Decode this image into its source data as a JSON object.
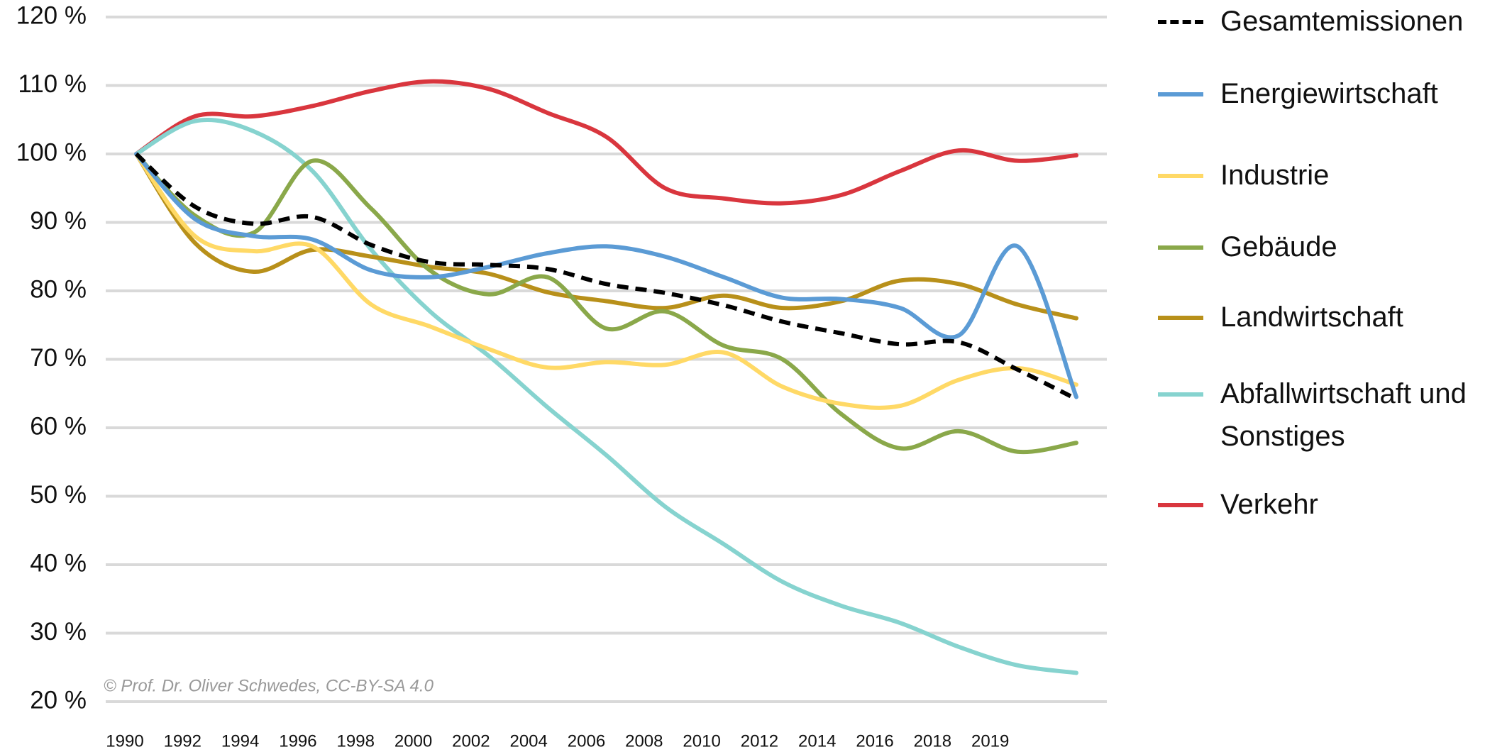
{
  "chart_data": {
    "type": "line",
    "categories": [
      "1990",
      "1992",
      "1994",
      "1996",
      "1998",
      "2000",
      "2002",
      "2004",
      "2006",
      "2008",
      "2010",
      "2012",
      "2014",
      "2016",
      "2018",
      "2019",
      null
    ],
    "series": [
      {
        "name": "Gesamtemissionen",
        "color": "#000000",
        "dashed": true,
        "values": [
          100,
          92.3,
          89.8,
          90.8,
          86.7,
          84.2,
          83.8,
          83.2,
          81,
          79.7,
          77.9,
          75.5,
          73.8,
          72.2,
          72.5,
          68.5,
          64.2
        ]
      },
      {
        "name": "Energiewirtschaft",
        "color": "#5b9bd5",
        "values": [
          100,
          90.5,
          88,
          87.5,
          83,
          82,
          83.5,
          85.5,
          86.5,
          85,
          82,
          79,
          78.8,
          77.5,
          73.5,
          86.5,
          64.5
        ]
      },
      {
        "name": "Industrie",
        "color": "#ffd966",
        "values": [
          100,
          88,
          85.8,
          86.5,
          78,
          74.8,
          71.5,
          68.8,
          69.6,
          69.2,
          71,
          66,
          63.5,
          63.2,
          67,
          68.7,
          66.3
        ]
      },
      {
        "name": "Gebäude",
        "color": "#8aa84a",
        "values": [
          100,
          91,
          88.5,
          99,
          92,
          83,
          79.5,
          82,
          74.5,
          77,
          72,
          70,
          62,
          57,
          59.5,
          56.5,
          57.8
        ]
      },
      {
        "name": "Landwirtschaft",
        "color": "#b8901a",
        "values": [
          100,
          87,
          82.8,
          86,
          85,
          83.5,
          82.5,
          79.8,
          78.5,
          77.5,
          79.3,
          77.5,
          78.5,
          81.5,
          81,
          78,
          76
        ]
      },
      {
        "name": "Abfallwirtschaft und Sonstiges",
        "color": "#86d3cf",
        "values": [
          100,
          104.8,
          103.3,
          97.5,
          86,
          77,
          70.5,
          63,
          56,
          48.5,
          43,
          37.5,
          34,
          31.5,
          28,
          25.3,
          24.2
        ]
      },
      {
        "name": "Verkehr",
        "color": "#d9363e",
        "values": [
          100,
          105.5,
          105.5,
          107,
          109.2,
          110.6,
          109.5,
          106,
          102.5,
          95,
          93.5,
          92.8,
          94,
          97.5,
          100.5,
          99,
          99.8
        ]
      }
    ],
    "ylim": [
      20,
      120
    ],
    "yticks": [
      {
        "value": 20,
        "label": "20 %"
      },
      {
        "value": 30,
        "label": "30 %"
      },
      {
        "value": 40,
        "label": "40 %"
      },
      {
        "value": 50,
        "label": "50 %"
      },
      {
        "value": 60,
        "label": "60 %"
      },
      {
        "value": 70,
        "label": "70 %"
      },
      {
        "value": 80,
        "label": "80 %"
      },
      {
        "value": 90,
        "label": "90 %"
      },
      {
        "value": 100,
        "label": "100 %"
      },
      {
        "value": 110,
        "label": "110 %"
      },
      {
        "value": 120,
        "label": "120 %"
      }
    ],
    "grid": true,
    "annotation": "© Prof. Dr. Oliver Schwedes, CC-BY-SA 4.0"
  }
}
